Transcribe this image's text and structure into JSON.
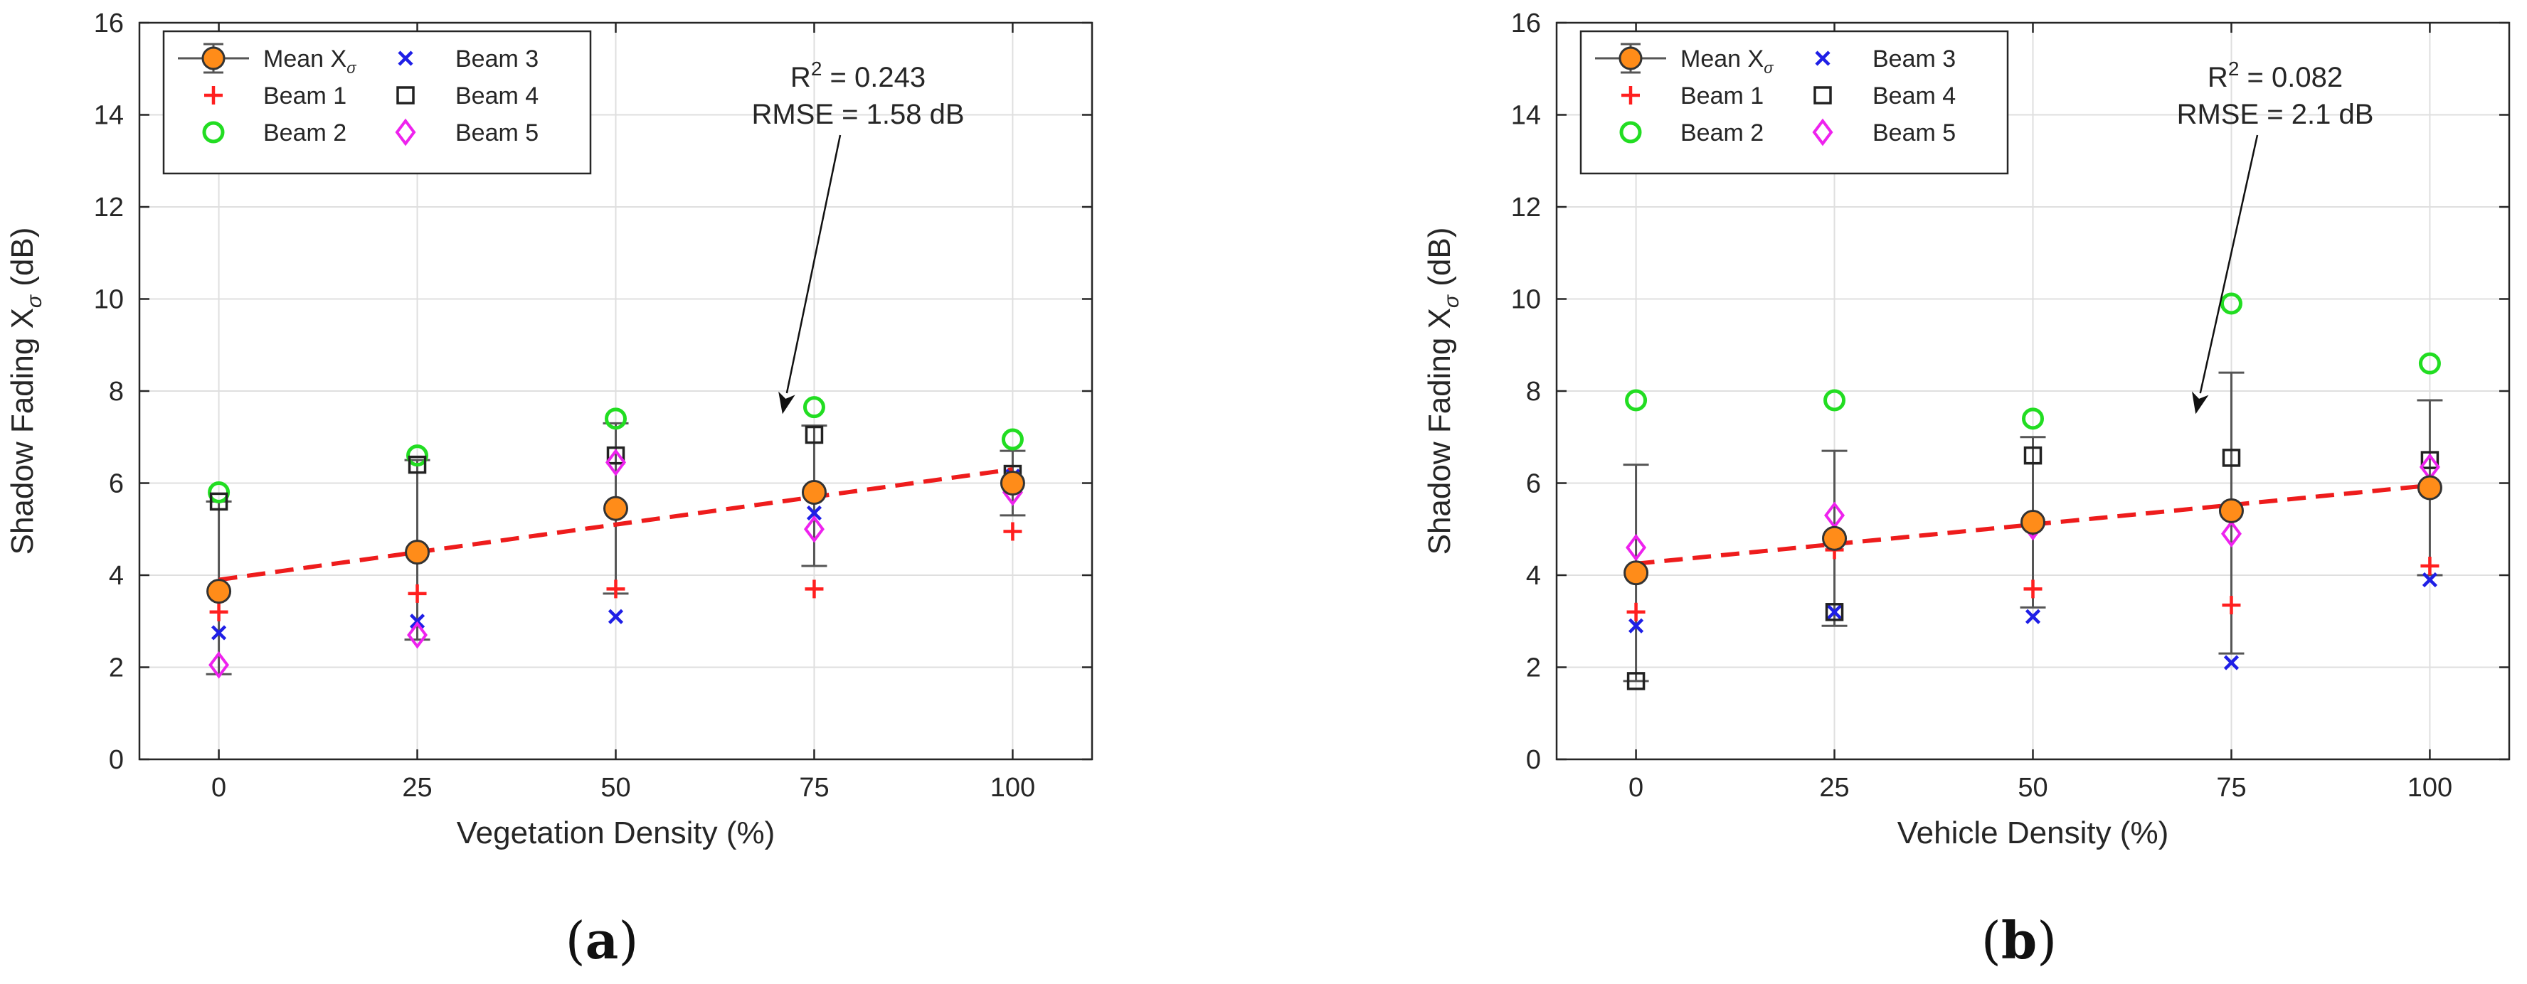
{
  "chart_data": [
    {
      "type": "scatter",
      "panel_label": "a",
      "title": "",
      "xlabel": "Vegetation Density (%)",
      "ylabel_main": "Shadow Fading X",
      "ylabel_sub": "σ",
      "ylabel_unit": " (dB)",
      "x": [
        0,
        25,
        50,
        75,
        100
      ],
      "xlim": [
        -10,
        110
      ],
      "ylim": [
        0,
        16
      ],
      "xticks": [
        "0",
        "25",
        "50",
        "75",
        "100"
      ],
      "yticks": [
        "0",
        "2",
        "4",
        "6",
        "8",
        "10",
        "12",
        "14",
        "16"
      ],
      "grid": true,
      "legend_position": "top-left",
      "series": [
        {
          "name": "Beam 1",
          "marker": "plus",
          "color": "#ff1f1f",
          "values": [
            3.2,
            3.6,
            3.7,
            3.7,
            4.95
          ]
        },
        {
          "name": "Beam 2",
          "marker": "circle",
          "color": "#22dd22",
          "values": [
            5.8,
            6.6,
            7.4,
            7.65,
            6.95
          ]
        },
        {
          "name": "Beam 3",
          "marker": "x",
          "color": "#1f1fe6",
          "values": [
            2.75,
            3.0,
            3.1,
            5.35,
            6.15
          ]
        },
        {
          "name": "Beam 4",
          "marker": "square",
          "color": "#222222",
          "values": [
            5.6,
            6.4,
            6.6,
            7.05,
            6.2
          ]
        },
        {
          "name": "Beam 5",
          "marker": "diamond",
          "color": "#ee22ee",
          "values": [
            2.05,
            2.7,
            6.45,
            5.0,
            5.8
          ]
        }
      ],
      "mean": {
        "name": "Mean X",
        "name_sub": "σ",
        "values": [
          3.65,
          4.5,
          5.45,
          5.8,
          6.0
        ],
        "err_low": [
          1.85,
          2.6,
          3.6,
          4.2,
          5.3
        ],
        "err_high": [
          5.6,
          6.5,
          7.3,
          7.25,
          6.7
        ],
        "color": "#ff8c19"
      },
      "fit": {
        "values": [
          3.9,
          6.3
        ],
        "color": "#ee1c1c"
      },
      "annotation": {
        "line1": "R",
        "line1_sup": "2",
        "line1_rest": " = 0.243",
        "line2": "RMSE = 1.58 dB",
        "arrow_to_x": 71,
        "arrow_to_y": 7.5
      }
    },
    {
      "type": "scatter",
      "panel_label": "b",
      "title": "",
      "xlabel": "Vehicle Density (%)",
      "ylabel_main": "Shadow Fading X",
      "ylabel_sub": "σ",
      "ylabel_unit": " (dB)",
      "x": [
        0,
        25,
        50,
        75,
        100
      ],
      "xlim": [
        -10,
        110
      ],
      "ylim": [
        0,
        16
      ],
      "xticks": [
        "0",
        "25",
        "50",
        "75",
        "100"
      ],
      "yticks": [
        "0",
        "2",
        "4",
        "6",
        "8",
        "10",
        "12",
        "14",
        "16"
      ],
      "grid": true,
      "legend_position": "top-left",
      "series": [
        {
          "name": "Beam 1",
          "marker": "plus",
          "color": "#ff1f1f",
          "values": [
            3.2,
            4.55,
            3.7,
            3.35,
            4.2
          ]
        },
        {
          "name": "Beam 2",
          "marker": "circle",
          "color": "#22dd22",
          "values": [
            7.8,
            7.8,
            7.4,
            9.9,
            8.6
          ]
        },
        {
          "name": "Beam 3",
          "marker": "x",
          "color": "#1f1fe6",
          "values": [
            2.9,
            3.2,
            3.1,
            2.1,
            3.9
          ]
        },
        {
          "name": "Beam 4",
          "marker": "square",
          "color": "#222222",
          "values": [
            1.7,
            3.2,
            6.6,
            6.55,
            6.5
          ]
        },
        {
          "name": "Beam 5",
          "marker": "diamond",
          "color": "#ee22ee",
          "values": [
            4.6,
            5.3,
            5.05,
            4.9,
            6.35
          ]
        }
      ],
      "mean": {
        "name": "Mean X",
        "name_sub": "σ",
        "values": [
          4.05,
          4.8,
          5.15,
          5.4,
          5.9
        ],
        "err_low": [
          1.7,
          2.9,
          3.3,
          2.3,
          4.0
        ],
        "err_high": [
          6.4,
          6.7,
          7.0,
          8.4,
          7.8
        ],
        "color": "#ff8c19"
      },
      "fit": {
        "values": [
          4.25,
          5.95
        ],
        "color": "#ee1c1c"
      },
      "annotation": {
        "line1": "R",
        "line1_sup": "2",
        "line1_rest": " = 0.082",
        "line2": "RMSE = 2.1 dB",
        "arrow_to_x": 70.5,
        "arrow_to_y": 7.5
      }
    }
  ]
}
